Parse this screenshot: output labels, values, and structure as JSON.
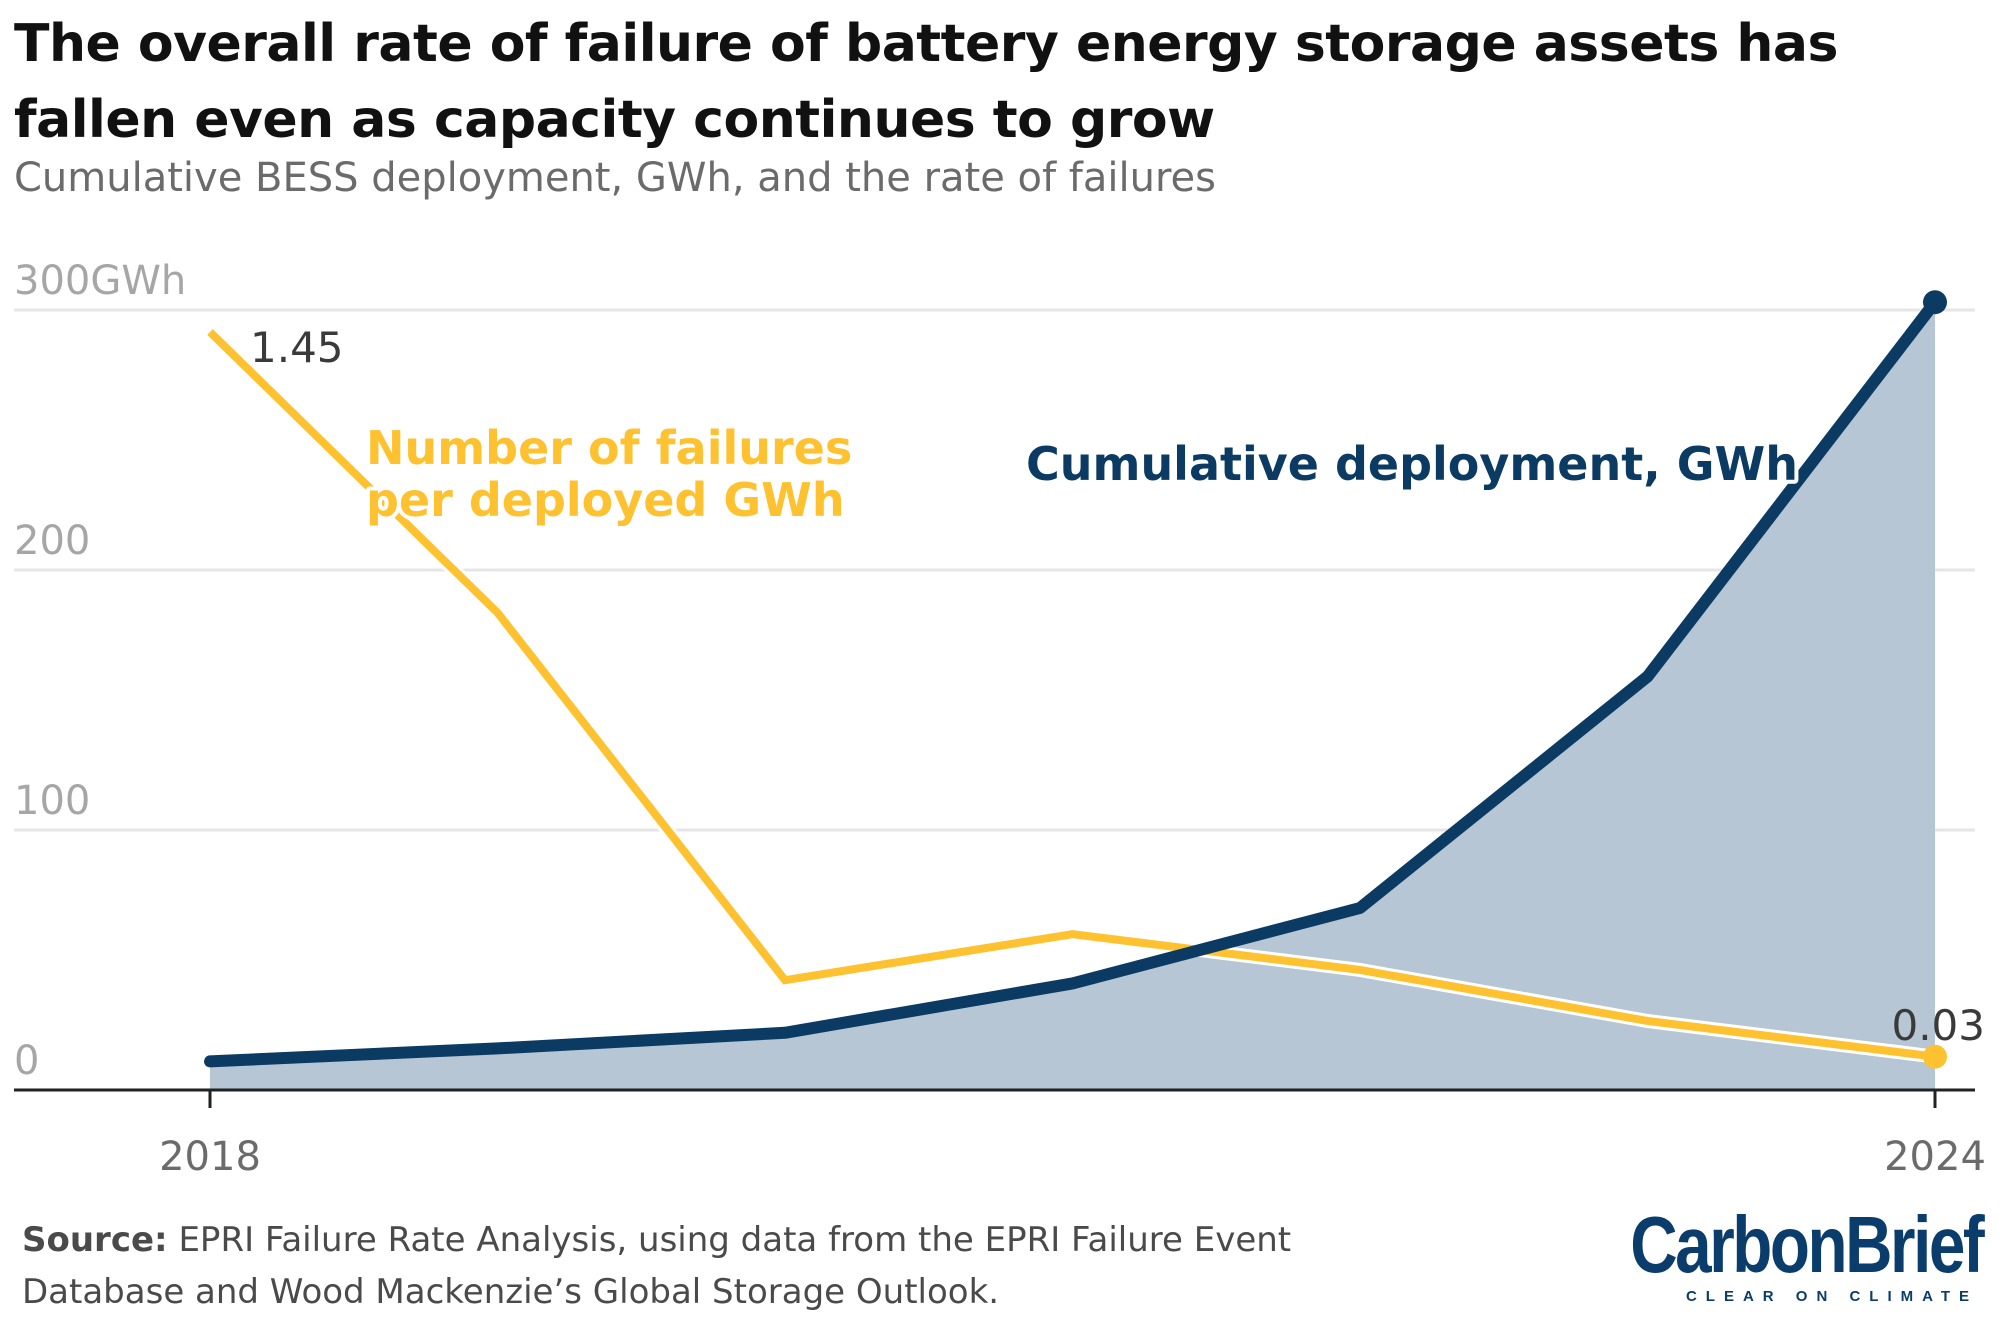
{
  "title": "The overall rate of failure of battery energy storage assets has fallen even as capacity continues to grow",
  "subtitle": "Cumulative BESS deployment, GWh, and the rate of failures",
  "source": {
    "label": "Source:",
    "text": "EPRI Failure Rate Analysis, using data from the EPRI Failure Event Database and Wood Mackenzie’s Global Storage Outlook."
  },
  "logo": {
    "name": "CarbonBrief",
    "tagline": "CLEAR ON CLIMATE"
  },
  "chart_data": {
    "type": "line",
    "x": [
      2018,
      2019,
      2020,
      2021,
      2022,
      2023,
      2024
    ],
    "xtick_labels": [
      "2018",
      "2024"
    ],
    "ylim": [
      0,
      300
    ],
    "ytick_labels": [
      "300GWh",
      "200",
      "100",
      "0"
    ],
    "yticks": [
      300,
      200,
      100,
      0
    ],
    "grid": true,
    "series": [
      {
        "name": "Cumulative deployment, GWh",
        "kind": "area",
        "color": "#0b3a62",
        "fill": "#b6c6d4",
        "values": [
          11,
          16,
          22,
          41,
          70,
          159,
          303
        ]
      },
      {
        "name": "Number of failures per deployed GWh",
        "kind": "line",
        "color": "#fec130",
        "values": [
          1.45,
          0.9,
          0.18,
          0.27,
          0.2,
          0.1,
          0.03
        ]
      }
    ],
    "annotations": {
      "start_value": "1.45",
      "end_value": "0.03"
    },
    "series_labels": {
      "deployment": "Cumulative deployment, GWh",
      "failures_line1": "Number of failures",
      "failures_line2": "per deployed GWh"
    }
  }
}
